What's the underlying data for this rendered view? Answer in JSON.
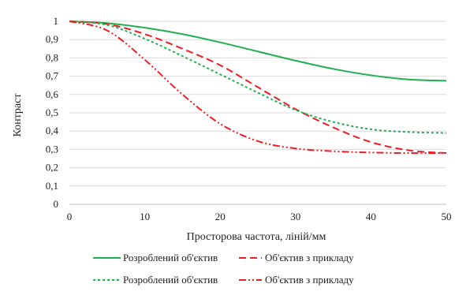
{
  "chart_data": {
    "type": "line",
    "title": "",
    "xlabel": "Просторова частота, ліній/мм",
    "ylabel": "Контраст",
    "xlim": [
      0,
      50
    ],
    "ylim": [
      0,
      1
    ],
    "x_ticks": [
      "0",
      "10",
      "20",
      "30",
      "40",
      "50"
    ],
    "y_ticks": [
      "0",
      "0,1",
      "0,2",
      "0,3",
      "0,4",
      "0,5",
      "0,6",
      "0,7",
      "0,8",
      "0,9",
      "1"
    ],
    "grid": "horizontal",
    "legend_position": "bottom",
    "series": [
      {
        "name": "Розроблений об'єктив",
        "color": "#1fb050",
        "style": "solid",
        "x": [
          0,
          5,
          10,
          15,
          20,
          25,
          30,
          35,
          40,
          45,
          50
        ],
        "y": [
          1.0,
          0.99,
          0.965,
          0.93,
          0.885,
          0.835,
          0.785,
          0.74,
          0.705,
          0.682,
          0.675
        ]
      },
      {
        "name": "Об'єктив з прикладу",
        "color": "#ee1c25",
        "style": "dashed",
        "x": [
          0,
          5,
          10,
          15,
          20,
          25,
          30,
          35,
          40,
          45,
          50
        ],
        "y": [
          1.0,
          0.985,
          0.93,
          0.85,
          0.76,
          0.64,
          0.52,
          0.42,
          0.34,
          0.295,
          0.28
        ]
      },
      {
        "name": "Розроблений об'єктив",
        "color": "#1fb050",
        "style": "dotted",
        "x": [
          0,
          5,
          10,
          15,
          20,
          25,
          30,
          35,
          40,
          45,
          50
        ],
        "y": [
          1.0,
          0.98,
          0.905,
          0.81,
          0.71,
          0.61,
          0.515,
          0.45,
          0.41,
          0.395,
          0.39
        ]
      },
      {
        "name": "Об'єктив з прикладу",
        "color": "#ee1c25",
        "style": "dashdotdot",
        "x": [
          0,
          5,
          10,
          15,
          20,
          25,
          30,
          35,
          40,
          45,
          50
        ],
        "y": [
          1.0,
          0.95,
          0.79,
          0.6,
          0.44,
          0.345,
          0.305,
          0.29,
          0.283,
          0.28,
          0.28
        ]
      }
    ]
  }
}
